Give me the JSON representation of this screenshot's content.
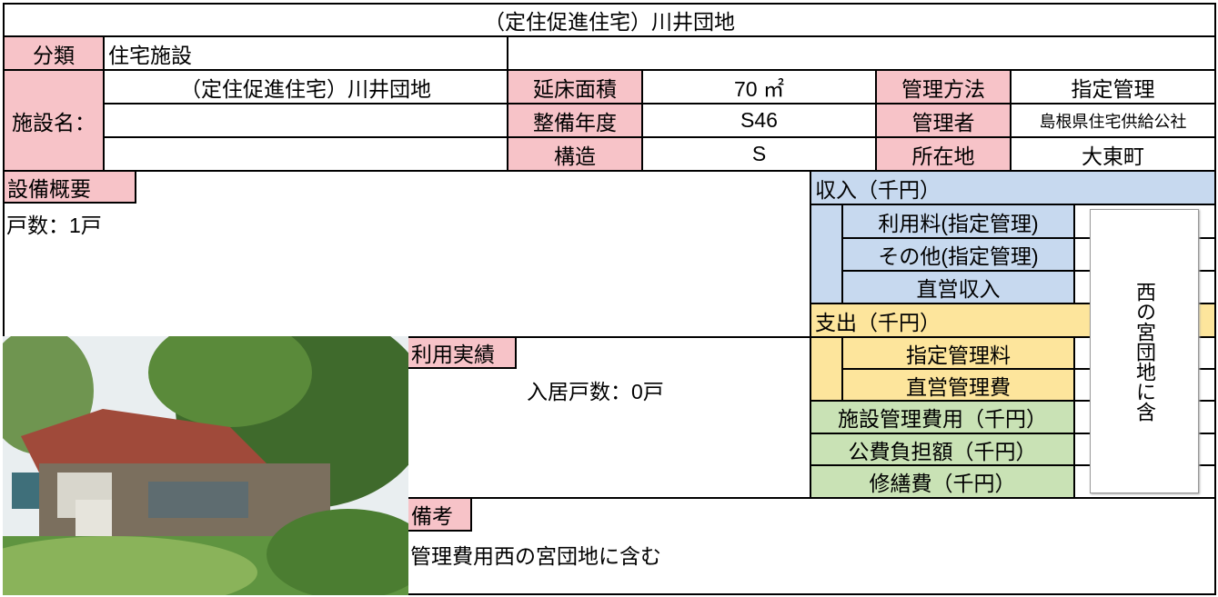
{
  "title": "（定住促進住宅）川井団地",
  "classification": {
    "label": "分類",
    "value": "住宅施設"
  },
  "facility": {
    "label": "施設名：",
    "name": "（定住促進住宅）川井団地"
  },
  "details": [
    {
      "label1": "延床面積",
      "value1": "70 ㎡",
      "label2": "管理方法",
      "value2": "指定管理"
    },
    {
      "label1": "整備年度",
      "value1": "S46",
      "label2": "管理者",
      "value2": "島根県住宅供給公社"
    },
    {
      "label1": "構造",
      "value1": "S",
      "label2": "所在地",
      "value2": "大東町"
    }
  ],
  "equipment": {
    "label": "設備概要",
    "text": "戸数：1戸"
  },
  "income": {
    "header": "収入（千円）",
    "items": [
      "利用料(指定管理)",
      "その他(指定管理)",
      "直営収入"
    ]
  },
  "expense": {
    "header": "支出（千円）",
    "items": [
      "指定管理料",
      "直営管理費"
    ]
  },
  "costs": [
    "施設管理費用（千円）",
    "公費負担額（千円）",
    "修繕費（千円）"
  ],
  "note_box": "西の宮団地に含",
  "usage": {
    "label": "利用実績",
    "text": "入居戸数：0戸"
  },
  "remarks": {
    "label": "備考",
    "text": "管理費用西の宮団地に含む"
  }
}
